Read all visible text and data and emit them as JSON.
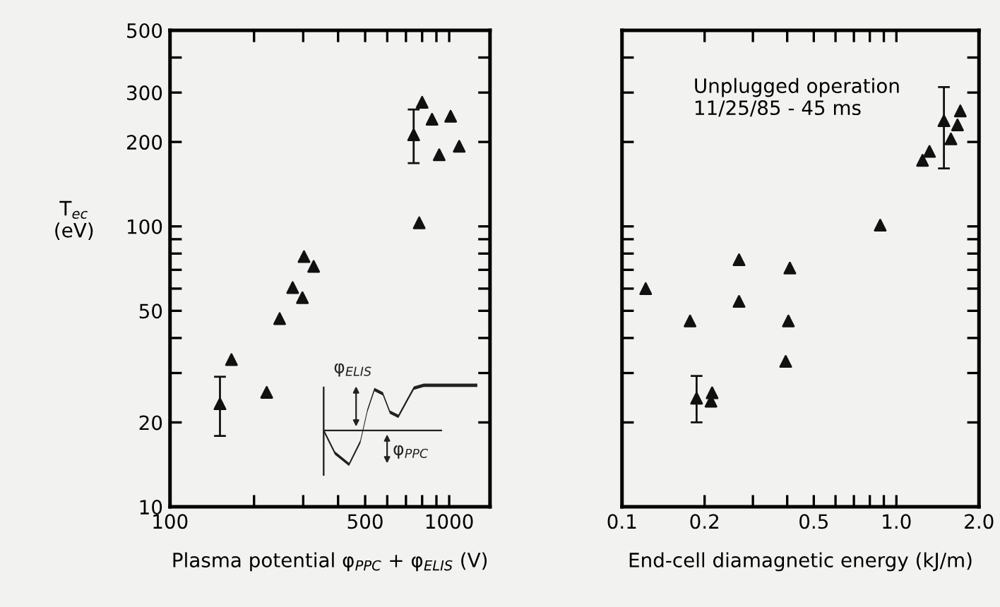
{
  "chart_data": [
    {
      "type": "scatter",
      "xlabel": "Plasma potential φ$_{PPC}$ + φ$_{ELIS}$ (V)",
      "ylabel": "T$_{ec}$\n(eV)",
      "log": "xy",
      "marker": "triangle",
      "grid": false,
      "xlim": [
        100,
        1400
      ],
      "xticks": [
        100,
        {
          "value": 200,
          "label": null
        },
        {
          "value": 300,
          "label": null
        },
        {
          "value": 400,
          "label": null
        },
        500,
        {
          "value": 600,
          "label": null
        },
        {
          "value": 700,
          "label": null
        },
        {
          "value": 800,
          "label": null
        },
        {
          "value": 900,
          "label": null
        },
        1000
      ],
      "ylim": [
        10,
        500
      ],
      "yticks": [
        10,
        20,
        {
          "value": 30,
          "label": null
        },
        {
          "value": 40,
          "label": null
        },
        50,
        {
          "value": 60,
          "label": null
        },
        {
          "value": 70,
          "label": null
        },
        {
          "value": 80,
          "label": null
        },
        {
          "value": 90,
          "label": null
        },
        100,
        200,
        300,
        {
          "value": 400,
          "label": null
        },
        500
      ],
      "annotations": [
        "φ$_{ELIS}$",
        "φ$_{PPC}$"
      ],
      "series": [
        {
          "color": "#111111",
          "x": [
            151,
            166,
            222,
            247,
            275,
            298,
            302,
            327,
            746,
            800,
            781,
            868,
            1012,
            921,
            1086
          ],
          "values": [
            23.3,
            33.5,
            25.6,
            46.9,
            60.5,
            55.7,
            78,
            72,
            212,
            277,
            103,
            241,
            247,
            180,
            193
          ],
          "errors": [
            [
              17.9,
              29.1
            ],
            null,
            null,
            null,
            null,
            null,
            null,
            null,
            [
              168,
              261
            ],
            null,
            null,
            null,
            null,
            null,
            null
          ]
        }
      ]
    },
    {
      "type": "scatter",
      "xlabel": "End-cell diamagnetic energy (kJ/m)",
      "log": "xy",
      "marker": "triangle",
      "grid": false,
      "tick_labels": "x",
      "xlim": [
        0.1,
        2.0
      ],
      "xticks": [
        0.1,
        0.2,
        {
          "value": 0.3,
          "label": null
        },
        {
          "value": 0.4,
          "label": null
        },
        0.5,
        {
          "value": 0.6,
          "label": null
        },
        {
          "value": 0.7,
          "label": null
        },
        {
          "value": 0.8,
          "label": null
        },
        {
          "value": 0.9,
          "label": null
        },
        {
          "value": 1,
          "label": "1.0"
        },
        {
          "value": 2,
          "label": "2.0"
        }
      ],
      "ylim": [
        10,
        500
      ],
      "yticks": [
        10,
        20,
        {
          "value": 30,
          "label": null
        },
        {
          "value": 40,
          "label": null
        },
        50,
        {
          "value": 60,
          "label": null
        },
        {
          "value": 70,
          "label": null
        },
        {
          "value": 80,
          "label": null
        },
        {
          "value": 90,
          "label": null
        },
        100,
        200,
        300,
        {
          "value": 400,
          "label": null
        },
        500
      ],
      "annotations": [
        "Unplugged operation\n11/25/85 - 45 ms"
      ],
      "series": [
        {
          "color": "#111111",
          "x": [
            0.122,
            0.177,
            0.267,
            0.267,
            0.404,
            0.409,
            0.395,
            0.187,
            0.213,
            0.211,
            0.873,
            1.245,
            1.32,
            1.49,
            1.58,
            1.67,
            1.71
          ],
          "values": [
            60,
            46,
            54,
            76,
            46,
            71,
            33,
            24.4,
            25.5,
            23.8,
            101,
            172,
            185,
            238,
            205,
            230,
            258
          ],
          "errors": [
            null,
            null,
            null,
            null,
            null,
            null,
            null,
            [
              20,
              29.3
            ],
            null,
            null,
            null,
            null,
            null,
            [
              161,
              314
            ],
            null,
            null,
            null
          ]
        }
      ]
    }
  ]
}
